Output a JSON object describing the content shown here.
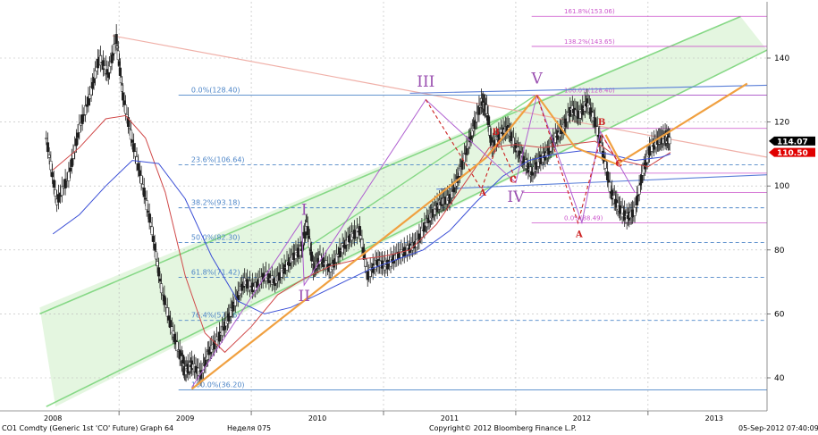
{
  "chart_data": {
    "type": "line",
    "instrument": "CO1 Comdty (Generic 1st 'CO' Future) Graph 64",
    "x_ticks": [
      "2008",
      "2009",
      "2010",
      "2011",
      "2012",
      "2013"
    ],
    "y_ticks": [
      40,
      60,
      80,
      100,
      120,
      140
    ],
    "ylim": [
      33,
      153
    ],
    "price_markers": [
      {
        "value": "114.07",
        "y": 114.07,
        "bg": "#000000",
        "fg": "#ffffff"
      },
      {
        "value": "110.50",
        "y": 110.5,
        "bg": "#e00000",
        "fg": "#ffffff"
      }
    ],
    "fib_left": [
      {
        "label": "0.0%(128.40)",
        "value": 128.4
      },
      {
        "label": "23.6%(106.64)",
        "value": 106.64
      },
      {
        "label": "38.2%(93.18)",
        "value": 93.18
      },
      {
        "label": "50.0%(82.30)",
        "value": 82.3
      },
      {
        "label": "61.8%(71.42)",
        "value": 71.42
      },
      {
        "label": "76.4%(57.96)",
        "value": 57.96
      },
      {
        "label": "100.0%(36.20)",
        "value": 36.2
      }
    ],
    "fib_right": [
      {
        "label": "161.8%(153.06)",
        "value": 153.06
      },
      {
        "label": "138.2%(143.65)",
        "value": 143.65
      },
      {
        "label": "100.0%(128.40)",
        "value": 128.4
      },
      {
        "label": "0.0%(88.49)",
        "value": 88.49
      }
    ],
    "wave_labels_purple": [
      {
        "text": "I",
        "t": 2009.9,
        "v": 91
      },
      {
        "text": "II",
        "t": 2009.9,
        "v": 64
      },
      {
        "text": "III",
        "t": 2010.82,
        "v": 131
      },
      {
        "text": "IV",
        "t": 2011.5,
        "v": 95
      },
      {
        "text": "V",
        "t": 2011.66,
        "v": 132
      }
    ],
    "wave_labels_red": [
      {
        "text": "A",
        "t": 2011.25,
        "v": 97
      },
      {
        "text": "B",
        "t": 2011.35,
        "v": 116
      },
      {
        "text": "C",
        "t": 2011.48,
        "v": 101
      },
      {
        "text": "A",
        "t": 2011.98,
        "v": 84
      },
      {
        "text": "B",
        "t": 2012.15,
        "v": 119
      },
      {
        "text": "C",
        "t": 2012.28,
        "v": 106
      }
    ],
    "price_series": [
      [
        2007.95,
        115
      ],
      [
        2008.03,
        95
      ],
      [
        2008.12,
        103
      ],
      [
        2008.2,
        118
      ],
      [
        2008.28,
        128
      ],
      [
        2008.35,
        140
      ],
      [
        2008.42,
        135
      ],
      [
        2008.48,
        146
      ],
      [
        2008.53,
        128
      ],
      [
        2008.6,
        114
      ],
      [
        2008.68,
        100
      ],
      [
        2008.75,
        86
      ],
      [
        2008.82,
        68
      ],
      [
        2008.9,
        55
      ],
      [
        2008.97,
        46
      ],
      [
        2009.0,
        42
      ],
      [
        2009.05,
        44
      ],
      [
        2009.12,
        41
      ],
      [
        2009.18,
        48
      ],
      [
        2009.25,
        52
      ],
      [
        2009.32,
        58
      ],
      [
        2009.38,
        64
      ],
      [
        2009.45,
        70
      ],
      [
        2009.52,
        68
      ],
      [
        2009.6,
        72
      ],
      [
        2009.68,
        70
      ],
      [
        2009.75,
        74
      ],
      [
        2009.82,
        78
      ],
      [
        2009.88,
        80
      ],
      [
        2009.92,
        88
      ],
      [
        2009.97,
        74
      ],
      [
        2010.02,
        77
      ],
      [
        2010.1,
        74
      ],
      [
        2010.18,
        80
      ],
      [
        2010.25,
        84
      ],
      [
        2010.32,
        86
      ],
      [
        2010.38,
        72
      ],
      [
        2010.45,
        76
      ],
      [
        2010.52,
        75
      ],
      [
        2010.6,
        78
      ],
      [
        2010.68,
        80
      ],
      [
        2010.75,
        82
      ],
      [
        2010.82,
        88
      ],
      [
        2010.88,
        92
      ],
      [
        2010.94,
        95
      ],
      [
        2011.0,
        96
      ],
      [
        2011.06,
        102
      ],
      [
        2011.12,
        110
      ],
      [
        2011.18,
        118
      ],
      [
        2011.24,
        126
      ],
      [
        2011.28,
        124
      ],
      [
        2011.32,
        112
      ],
      [
        2011.38,
        116
      ],
      [
        2011.44,
        118
      ],
      [
        2011.5,
        112
      ],
      [
        2011.56,
        108
      ],
      [
        2011.62,
        104
      ],
      [
        2011.68,
        108
      ],
      [
        2011.74,
        110
      ],
      [
        2011.8,
        115
      ],
      [
        2011.86,
        118
      ],
      [
        2011.92,
        124
      ],
      [
        2011.98,
        122
      ],
      [
        2012.04,
        126
      ],
      [
        2012.1,
        120
      ],
      [
        2012.16,
        110
      ],
      [
        2012.22,
        98
      ],
      [
        2012.28,
        93
      ],
      [
        2012.34,
        90
      ],
      [
        2012.4,
        92
      ],
      [
        2012.46,
        104
      ],
      [
        2012.52,
        112
      ],
      [
        2012.58,
        114
      ],
      [
        2012.63,
        115
      ],
      [
        2012.67,
        114.07
      ]
    ],
    "ma_red": [
      [
        2008.0,
        105
      ],
      [
        2008.2,
        112
      ],
      [
        2008.4,
        121
      ],
      [
        2008.55,
        122
      ],
      [
        2008.7,
        115
      ],
      [
        2008.85,
        98
      ],
      [
        2009.0,
        72
      ],
      [
        2009.15,
        54
      ],
      [
        2009.3,
        48
      ],
      [
        2009.5,
        56
      ],
      [
        2009.7,
        66
      ],
      [
        2009.9,
        71
      ],
      [
        2010.1,
        75
      ],
      [
        2010.3,
        77
      ],
      [
        2010.5,
        78
      ],
      [
        2010.7,
        80
      ],
      [
        2010.9,
        88
      ],
      [
        2011.1,
        100
      ],
      [
        2011.3,
        112
      ],
      [
        2011.5,
        113
      ],
      [
        2011.7,
        112
      ],
      [
        2011.9,
        113
      ],
      [
        2012.1,
        114
      ],
      [
        2012.3,
        108
      ],
      [
        2012.5,
        106
      ],
      [
        2012.67,
        110.5
      ]
    ],
    "ma_blue": [
      [
        2008.0,
        85
      ],
      [
        2008.2,
        91
      ],
      [
        2008.4,
        100
      ],
      [
        2008.6,
        108
      ],
      [
        2008.8,
        107
      ],
      [
        2009.0,
        96
      ],
      [
        2009.2,
        78
      ],
      [
        2009.4,
        64
      ],
      [
        2009.6,
        60
      ],
      [
        2009.8,
        62
      ],
      [
        2010.0,
        66
      ],
      [
        2010.2,
        70
      ],
      [
        2010.4,
        74
      ],
      [
        2010.6,
        77
      ],
      [
        2010.8,
        80
      ],
      [
        2011.0,
        86
      ],
      [
        2011.2,
        95
      ],
      [
        2011.4,
        103
      ],
      [
        2011.6,
        108
      ],
      [
        2011.8,
        110
      ],
      [
        2012.0,
        111
      ],
      [
        2012.2,
        110
      ],
      [
        2012.4,
        108
      ],
      [
        2012.6,
        109
      ],
      [
        2012.67,
        110
      ]
    ]
  },
  "footer": {
    "left": "CO1 Comdty (Generic 1st 'CO' Future) Graph 64",
    "center": "Неделя 075",
    "copyright": "Copyright© 2012 Bloomberg Finance L.P.",
    "timestamp": "05-Sep-2012 07:40:09"
  },
  "colors": {
    "fib_line": "#4e86c8",
    "fib_right_line": "#cc55cc",
    "channel_green": "#86d886",
    "channel_fill": "#e4f6e0",
    "orange_path": "#f0a040",
    "purple_wave": "#b060d0",
    "red_wave": "#cc2020",
    "label_purple": "#9a4fb0",
    "label_red": "#cc2020",
    "grid": "#b8b8b8",
    "candle": "#1e1e1e"
  }
}
